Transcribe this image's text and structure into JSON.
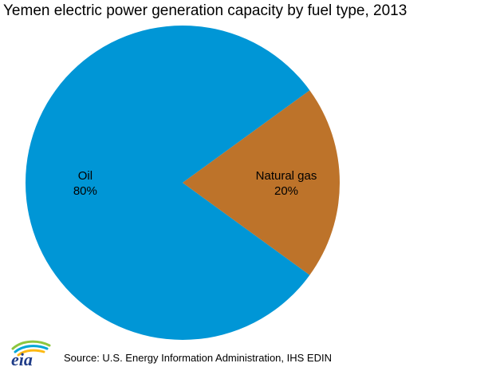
{
  "chart_data": {
    "type": "pie",
    "title": "Yemen electric power generation capacity by fuel type, 2013",
    "slices": [
      {
        "label": "Oil",
        "value": 80,
        "value_label": "80%",
        "color": "#0096d6"
      },
      {
        "label": "Natural gas",
        "value": 20,
        "value_label": "20%",
        "color": "#bd732a"
      }
    ]
  },
  "source": "Source: U.S. Energy Information Administration, IHS EDIN",
  "logo": {
    "text": "eia",
    "icon": "eia-logo-icon",
    "text_color": "#1f3c88",
    "swoosh_colors": [
      "#8dc63f",
      "#00a6d6",
      "#fdb913"
    ]
  }
}
